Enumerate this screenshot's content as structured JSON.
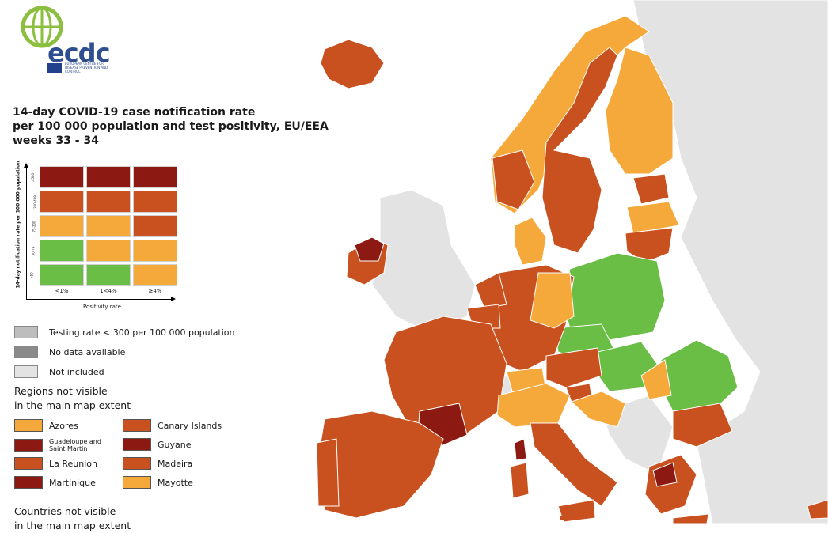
{
  "title": {
    "line1": "14-day COVID-19 case notification rate",
    "line2": "per 100 000 population and test positivity, EU/EEA",
    "line3": "weeks 33 - 34"
  },
  "logo": {
    "name": "ecdc",
    "subtitle": "EUROPEAN CENTRE FOR DISEASE PREVENTION AND CONTROL"
  },
  "colors": {
    "green": "#6abd45",
    "orange": "#f6a93b",
    "red": "#c8511f",
    "darkred": "#8c1a12",
    "grey_testing": "#bdbdbd",
    "grey_nodata": "#8a8a8a",
    "grey_notincluded": "#e3e3e3"
  },
  "matrix": {
    "y_axis_label": "14-day notification rate per 100 000 population",
    "x_axis_label": "Positivity rate",
    "row_labels": [
      ">500",
      "200-499",
      "75-200",
      "50-74",
      "<50"
    ],
    "col_labels": [
      "<1%",
      "1<4%",
      "≥4%"
    ],
    "cells": [
      [
        "darkred",
        "darkred",
        "darkred"
      ],
      [
        "red",
        "red",
        "red"
      ],
      [
        "orange",
        "orange",
        "red"
      ],
      [
        "green",
        "orange",
        "orange"
      ],
      [
        "green",
        "green",
        "orange"
      ]
    ]
  },
  "legend": {
    "testing": "Testing rate < 300 per 100 000 population",
    "nodata": "No data available",
    "notincluded": "Not included"
  },
  "regions_header": {
    "line1": "Regions not visible",
    "line2": "in the main map extent"
  },
  "regions": [
    {
      "label": "Azores",
      "color": "orange"
    },
    {
      "label": "Canary Islands",
      "color": "red"
    },
    {
      "label": "Guadeloupe and Saint Martin",
      "color": "darkred"
    },
    {
      "label": "Guyane",
      "color": "darkred"
    },
    {
      "label": "La Reunion",
      "color": "red"
    },
    {
      "label": "Madeira",
      "color": "red"
    },
    {
      "label": "Martinique",
      "color": "darkred"
    },
    {
      "label": "Mayotte",
      "color": "orange"
    }
  ],
  "countries_header": {
    "line1": "Countries not visible",
    "line2": "in the main map extent"
  }
}
